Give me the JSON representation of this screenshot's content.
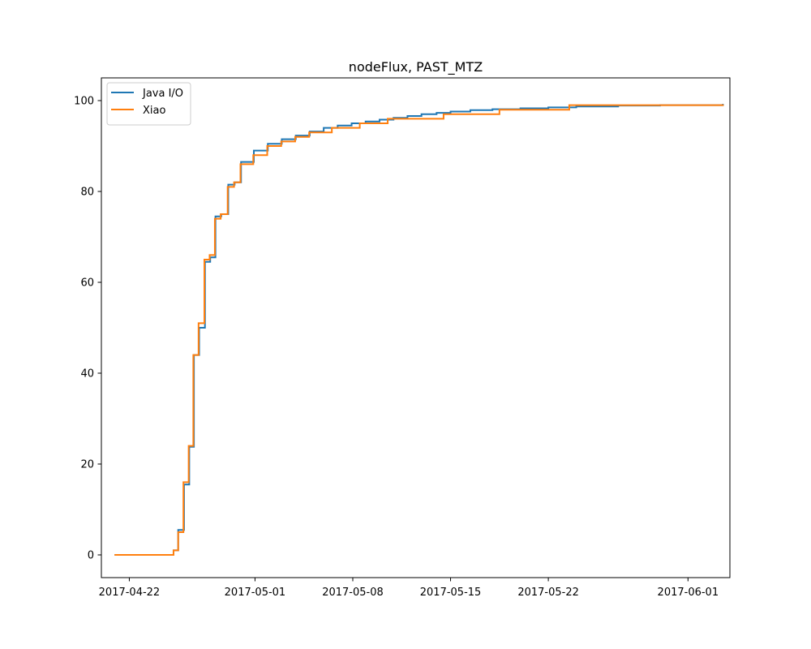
{
  "chart_data": {
    "type": "line",
    "title": "nodeFlux, PAST_MTZ",
    "xlabel": "",
    "ylabel": "",
    "x_axis_type": "date",
    "xlim": [
      "2017-04-20",
      "2017-06-04"
    ],
    "ylim": [
      -5,
      105
    ],
    "x_ticks": [
      "2017-04-22",
      "2017-05-01",
      "2017-05-08",
      "2017-05-15",
      "2017-05-22",
      "2017-06-01"
    ],
    "y_ticks": [
      0,
      20,
      40,
      60,
      80,
      100
    ],
    "legend_position": "top-left",
    "grid": false,
    "series": [
      {
        "name": "Java I/O",
        "color": "#1f77b4",
        "step": "post",
        "points": [
          [
            "2017-04-21T00:00",
            0
          ],
          [
            "2017-04-25T04:00",
            1
          ],
          [
            "2017-04-25T12:00",
            5.5
          ],
          [
            "2017-04-25T22:00",
            15.5
          ],
          [
            "2017-04-26T07:00",
            23.8
          ],
          [
            "2017-04-26T15:00",
            44
          ],
          [
            "2017-04-27T00:00",
            50
          ],
          [
            "2017-04-27T10:00",
            64.5
          ],
          [
            "2017-04-27T19:00",
            65.5
          ],
          [
            "2017-04-28T04:00",
            74.5
          ],
          [
            "2017-04-28T14:00",
            75
          ],
          [
            "2017-04-29T02:00",
            81.5
          ],
          [
            "2017-04-29T13:00",
            82
          ],
          [
            "2017-04-30T00:00",
            86.5
          ],
          [
            "2017-04-30T22:00",
            89
          ],
          [
            "2017-05-01T22:00",
            90.5
          ],
          [
            "2017-05-02T22:00",
            91.5
          ],
          [
            "2017-05-03T22:00",
            92.3
          ],
          [
            "2017-05-04T22:00",
            93.2
          ],
          [
            "2017-05-05T22:00",
            94
          ],
          [
            "2017-05-06T22:00",
            94.5
          ],
          [
            "2017-05-07T22:00",
            95
          ],
          [
            "2017-05-08T22:00",
            95.4
          ],
          [
            "2017-05-09T22:00",
            95.8
          ],
          [
            "2017-05-10T22:00",
            96.2
          ],
          [
            "2017-05-11T22:00",
            96.6
          ],
          [
            "2017-05-12T22:00",
            97
          ],
          [
            "2017-05-14T00:00",
            97.3
          ],
          [
            "2017-05-15T00:00",
            97.6
          ],
          [
            "2017-05-16T10:00",
            97.9
          ],
          [
            "2017-05-18T00:00",
            98.1
          ],
          [
            "2017-05-20T00:00",
            98.3
          ],
          [
            "2017-05-22T00:00",
            98.5
          ],
          [
            "2017-05-24T00:00",
            98.7
          ],
          [
            "2017-05-27T00:00",
            98.9
          ],
          [
            "2017-05-30T00:00",
            99
          ],
          [
            "2017-06-03T12:00",
            99.1
          ]
        ]
      },
      {
        "name": "Xiao",
        "color": "#ff7f0e",
        "step": "post",
        "points": [
          [
            "2017-04-21T00:00",
            0
          ],
          [
            "2017-04-25T04:00",
            1
          ],
          [
            "2017-04-25T12:00",
            5
          ],
          [
            "2017-04-25T21:00",
            16
          ],
          [
            "2017-04-26T06:00",
            24
          ],
          [
            "2017-04-26T14:00",
            44
          ],
          [
            "2017-04-26T23:00",
            51
          ],
          [
            "2017-04-27T09:00",
            65
          ],
          [
            "2017-04-27T18:00",
            66
          ],
          [
            "2017-04-28T03:00",
            74
          ],
          [
            "2017-04-28T13:00",
            75
          ],
          [
            "2017-04-29T01:00",
            81
          ],
          [
            "2017-04-29T12:00",
            82
          ],
          [
            "2017-04-29T23:00",
            86
          ],
          [
            "2017-04-30T21:00",
            88
          ],
          [
            "2017-05-01T21:00",
            90
          ],
          [
            "2017-05-02T21:00",
            91
          ],
          [
            "2017-05-03T21:00",
            92
          ],
          [
            "2017-05-04T21:00",
            93
          ],
          [
            "2017-05-06T12:00",
            94
          ],
          [
            "2017-05-08T12:00",
            95
          ],
          [
            "2017-05-10T12:00",
            96
          ],
          [
            "2017-05-14T12:00",
            97
          ],
          [
            "2017-05-18T12:00",
            98
          ],
          [
            "2017-05-23T12:00",
            99
          ],
          [
            "2017-06-03T12:00",
            99
          ]
        ]
      }
    ]
  }
}
